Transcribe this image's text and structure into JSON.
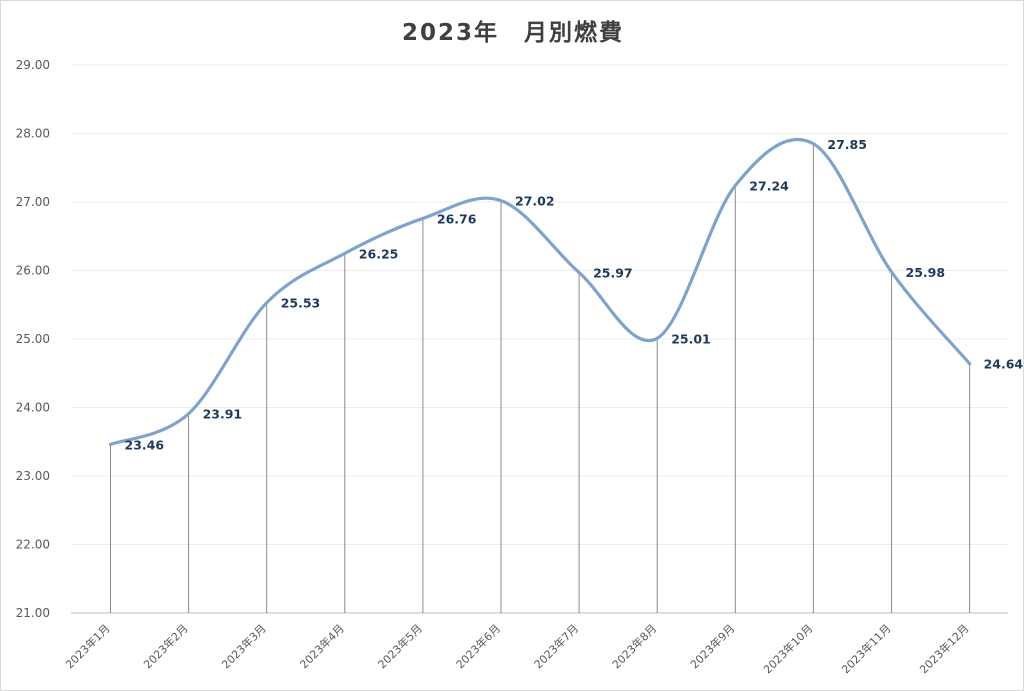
{
  "chart_data": {
    "type": "line",
    "title": "2023年　月別燃費",
    "categories": [
      "2023年1月",
      "2023年2月",
      "2023年3月",
      "2023年4月",
      "2023年5月",
      "2023年6月",
      "2023年7月",
      "2023年8月",
      "2023年9月",
      "2023年10月",
      "2023年11月",
      "2023年12月"
    ],
    "values": [
      23.46,
      23.91,
      25.53,
      26.25,
      26.76,
      27.02,
      25.97,
      25.01,
      27.24,
      27.85,
      25.98,
      24.64
    ],
    "data_labels": [
      "23.46",
      "23.91",
      "25.53",
      "26.25",
      "26.76",
      "27.02",
      "25.97",
      "25.01",
      "27.24",
      "27.85",
      "25.98",
      "24.64"
    ],
    "ylim": [
      21,
      29
    ],
    "yticks": [
      "21.00",
      "22.00",
      "23.00",
      "24.00",
      "25.00",
      "26.00",
      "27.00",
      "28.00",
      "29.00"
    ],
    "xlabel": "",
    "ylabel": "",
    "smooth": true,
    "drop_lines": true,
    "grid": true,
    "legend": "none",
    "colors": {
      "line": "#7fa3cb",
      "drop_line": "#8c8c8c",
      "grid": "#ececec",
      "label": "#1f3a5a"
    }
  }
}
